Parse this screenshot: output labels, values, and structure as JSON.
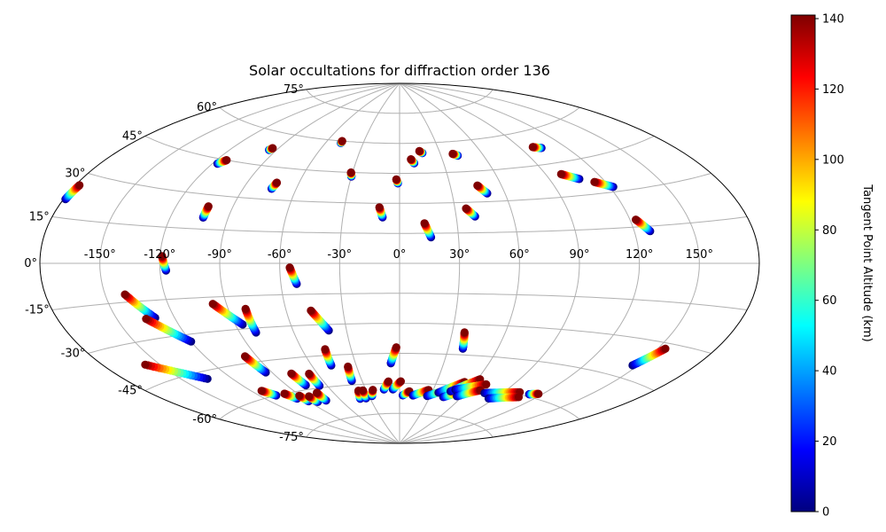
{
  "chart_data": {
    "type": "scatter",
    "projection": "aitoff-like (elliptical world map)",
    "title": "Solar occultations for diffraction order 136",
    "lon_ticks": [
      "-150°",
      "-120°",
      "-90°",
      "-60°",
      "-30°",
      "0°",
      "30°",
      "60°",
      "90°",
      "120°",
      "150°"
    ],
    "lon_tick_values": [
      -150,
      -120,
      -90,
      -60,
      -30,
      0,
      30,
      60,
      90,
      120,
      150
    ],
    "lat_ticks": [
      "75°",
      "60°",
      "45°",
      "30°",
      "15°",
      "0°",
      "-15°",
      "-30°",
      "-45°",
      "-60°",
      "-75°"
    ],
    "lat_tick_values": [
      75,
      60,
      45,
      30,
      15,
      0,
      -15,
      -30,
      -45,
      -60,
      -75
    ],
    "grid": true,
    "colormap": "jet",
    "colorbar": {
      "label": "Tangent Point Altitude (km)",
      "ticks": [
        "0",
        "20",
        "40",
        "60",
        "80",
        "100",
        "120",
        "140"
      ],
      "tick_values": [
        0,
        20,
        40,
        60,
        80,
        100,
        120,
        140
      ],
      "range": [
        0,
        141
      ],
      "position": "right"
    },
    "tracks": [
      {
        "lon_start": -179,
        "lat_start": 21,
        "lon_end": -178,
        "lat_end": 26
      },
      {
        "lon_start": -117,
        "lat_start": 43,
        "lon_end": -114,
        "lat_end": 45
      },
      {
        "lon_start": -95,
        "lat_start": 52,
        "lon_end": -94,
        "lat_end": 53
      },
      {
        "lon_start": -103,
        "lat_start": 20,
        "lon_end": -103,
        "lat_end": 25
      },
      {
        "lon_start": -74,
        "lat_start": 35,
        "lon_end": -73,
        "lat_end": 38
      },
      {
        "lon_start": -48,
        "lat_start": 59,
        "lon_end": -48,
        "lat_end": 60
      },
      {
        "lon_start": -30,
        "lat_start": 43,
        "lon_end": -31,
        "lat_end": 45
      },
      {
        "lon_start": -1,
        "lat_start": 40,
        "lon_end": -2,
        "lat_end": 42
      },
      {
        "lon_start": -9,
        "lat_start": 23,
        "lon_end": -11,
        "lat_end": 28
      },
      {
        "lon_start": 10,
        "lat_start": 50,
        "lon_end": 8,
        "lat_end": 52
      },
      {
        "lon_start": 17,
        "lat_start": 55,
        "lon_end": 15,
        "lat_end": 56
      },
      {
        "lon_start": 16,
        "lat_start": 13,
        "lon_end": 13,
        "lat_end": 20
      },
      {
        "lon_start": 42,
        "lat_start": 53,
        "lon_end": 39,
        "lat_end": 54
      },
      {
        "lon_start": 40,
        "lat_start": 23,
        "lon_end": 36,
        "lat_end": 27
      },
      {
        "lon_start": 50,
        "lat_start": 34,
        "lon_end": 46,
        "lat_end": 38
      },
      {
        "lon_start": 104,
        "lat_start": 52,
        "lon_end": 99,
        "lat_end": 53
      },
      {
        "lon_start": 107,
        "lat_start": 37,
        "lon_end": 99,
        "lat_end": 40
      },
      {
        "lon_start": 122,
        "lat_start": 32,
        "lon_end": 114,
        "lat_end": 35
      },
      {
        "lon_start": 128,
        "lat_start": 13,
        "lon_end": 123,
        "lat_end": 18
      },
      {
        "lon_start": -117,
        "lat_start": -3,
        "lon_end": -119,
        "lat_end": 3
      },
      {
        "lon_start": -130,
        "lat_start": -22,
        "lon_end": -140,
        "lat_end": -12
      },
      {
        "lon_start": -120,
        "lat_start": -33,
        "lon_end": -135,
        "lat_end": -22
      },
      {
        "lon_start": -135,
        "lat_start": -48,
        "lon_end": -158,
        "lat_end": -38
      },
      {
        "lon_start": -86,
        "lat_start": -28,
        "lon_end": -97,
        "lat_end": -18
      },
      {
        "lon_start": -81,
        "lat_start": -32,
        "lon_end": -81,
        "lat_end": -21
      },
      {
        "lon_start": -52,
        "lat_start": -10,
        "lon_end": -55,
        "lat_end": -2
      },
      {
        "lon_start": -40,
        "lat_start": -33,
        "lon_end": -47,
        "lat_end": -23
      },
      {
        "lon_start": -94,
        "lat_start": -50,
        "lon_end": -97,
        "lat_end": -42
      },
      {
        "lon_start": -76,
        "lat_start": -58,
        "lon_end": -78,
        "lat_end": -52
      },
      {
        "lon_start": -66,
        "lat_start": -59,
        "lon_end": -66,
        "lat_end": -53
      },
      {
        "lon_start": -47,
        "lat_start": -50,
        "lon_end": -46,
        "lat_end": -42
      },
      {
        "lon_start": -38,
        "lat_start": -58,
        "lon_end": -36,
        "lat_end": -51
      },
      {
        "lon_start": -6,
        "lat_start": -50,
        "lon_end": -2,
        "lat_end": -42
      },
      {
        "lon_start": 39,
        "lat_start": -42,
        "lon_end": 37,
        "lat_end": -34
      },
      {
        "lon_start": 147,
        "lat_start": -40,
        "lon_end": 154,
        "lat_end": -32
      },
      {
        "lon_start": -108,
        "lat_start": -60,
        "lon_end": -113,
        "lat_end": -57
      },
      {
        "lon_start": -96,
        "lat_start": -63,
        "lon_end": -100,
        "lat_end": -60
      },
      {
        "lon_start": -90,
        "lat_start": -65,
        "lon_end": -91,
        "lat_end": -62
      },
      {
        "lon_start": -83,
        "lat_start": -66,
        "lon_end": -84,
        "lat_end": -63
      },
      {
        "lon_start": -74,
        "lat_start": -66,
        "lon_end": -74,
        "lat_end": -62
      },
      {
        "lon_start": -40,
        "lat_start": -67,
        "lon_end": -37,
        "lat_end": -63
      },
      {
        "lon_start": -34,
        "lat_start": -67,
        "lon_end": -33,
        "lat_end": -63
      },
      {
        "lon_start": -27,
        "lat_start": -66,
        "lon_end": -24,
        "lat_end": -63
      },
      {
        "lon_start": -14,
        "lat_start": -63,
        "lon_end": -9,
        "lat_end": -59
      },
      {
        "lon_start": -6,
        "lat_start": -63,
        "lon_end": 1,
        "lat_end": -59
      },
      {
        "lon_start": 3,
        "lat_start": -66,
        "lon_end": 9,
        "lat_end": -64
      },
      {
        "lon_start": 13,
        "lat_start": -66,
        "lon_end": 26,
        "lat_end": -63
      },
      {
        "lon_start": 27,
        "lat_start": -66,
        "lon_end": 44,
        "lat_end": -62
      },
      {
        "lon_start": 36,
        "lat_start": -64,
        "lon_end": 52,
        "lat_end": -58
      },
      {
        "lon_start": 43,
        "lat_start": -66,
        "lon_end": 55,
        "lat_end": -63
      },
      {
        "lon_start": 46,
        "lat_start": -63,
        "lon_end": 62,
        "lat_end": -56
      },
      {
        "lon_start": 49,
        "lat_start": -62,
        "lon_end": 70,
        "lat_end": -58
      },
      {
        "lon_start": 55,
        "lat_start": -65,
        "lon_end": 70,
        "lat_end": -61
      },
      {
        "lon_start": 76,
        "lat_start": -62,
        "lon_end": 102,
        "lat_end": -59
      },
      {
        "lon_start": 85,
        "lat_start": -64,
        "lon_end": 107,
        "lat_end": -61
      },
      {
        "lon_start": 111,
        "lat_start": -59,
        "lon_end": 117,
        "lat_end": -58
      }
    ]
  }
}
